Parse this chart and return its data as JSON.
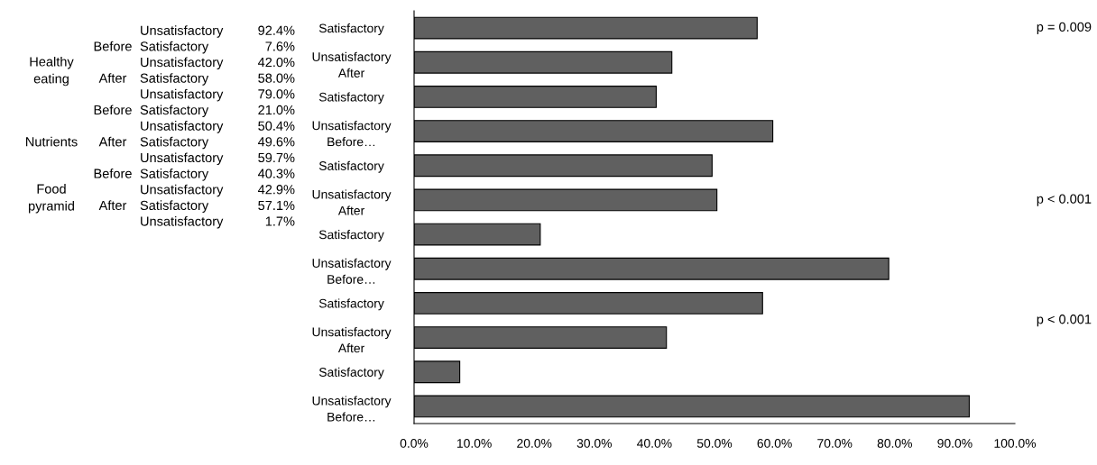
{
  "chart_data": [
    {
      "type": "other",
      "annotations": [
        "Unsatisfactory",
        "92.4%",
        "Before",
        "Satisfactory",
        "7.6%",
        "Healthy\neating",
        "Unsatisfactory",
        "42.0%",
        "After",
        "Satisfactory",
        "58.0%",
        "Unsatisfactory",
        "79.0%",
        "Before",
        "Satisfactory",
        "21.0%",
        "Unsatisfactory",
        "50.4%",
        "Nutrients",
        "After",
        "Satisfactory",
        "49.6%",
        "Unsatisfactory",
        "59.7%",
        "Before",
        "Satisfactory",
        "40.3%",
        "Food\npyramid",
        "Unsatisfactory",
        "42.9%",
        "After",
        "Satisfactory",
        "57.1%",
        "Unsatisfactory",
        "1.7%"
      ]
    },
    {
      "type": "bar",
      "orientation": "horizontal",
      "categories": [
        "Satisfactory",
        "Unsatisfactory\nAfter",
        "Satisfactory",
        "Unsatisfactory\nBefore…",
        "Satisfactory",
        "Unsatisfactory\nAfter",
        "Satisfactory",
        "Unsatisfactory\nBefore…",
        "Satisfactory",
        "Unsatisfactory\nAfter",
        "Satisfactory",
        "Unsatisfactory\nBefore…"
      ],
      "values": [
        57.1,
        42.9,
        40.3,
        59.7,
        49.6,
        50.4,
        21.0,
        79.0,
        58.0,
        42.0,
        7.6,
        92.4
      ],
      "color": "#606060",
      "xlim": [
        0,
        100
      ],
      "xticks": [
        {
          "value": 0,
          "label": "0.0%"
        },
        {
          "value": 10,
          "label": "10.0%"
        },
        {
          "value": 20,
          "label": "20.0%"
        },
        {
          "value": 30,
          "label": "30.0%"
        },
        {
          "value": 40,
          "label": "40.0%"
        },
        {
          "value": 50,
          "label": "50.0%"
        },
        {
          "value": 60,
          "label": "60.0%"
        },
        {
          "value": 70,
          "label": "70.0%"
        },
        {
          "value": 80,
          "label": "80.0%"
        },
        {
          "value": 90,
          "label": "90.0%"
        },
        {
          "value": 100,
          "label": "100.0%"
        }
      ],
      "grid": false,
      "annotations": [
        "p = 0.009",
        "p < 0.001",
        "p < 0.001"
      ]
    }
  ]
}
